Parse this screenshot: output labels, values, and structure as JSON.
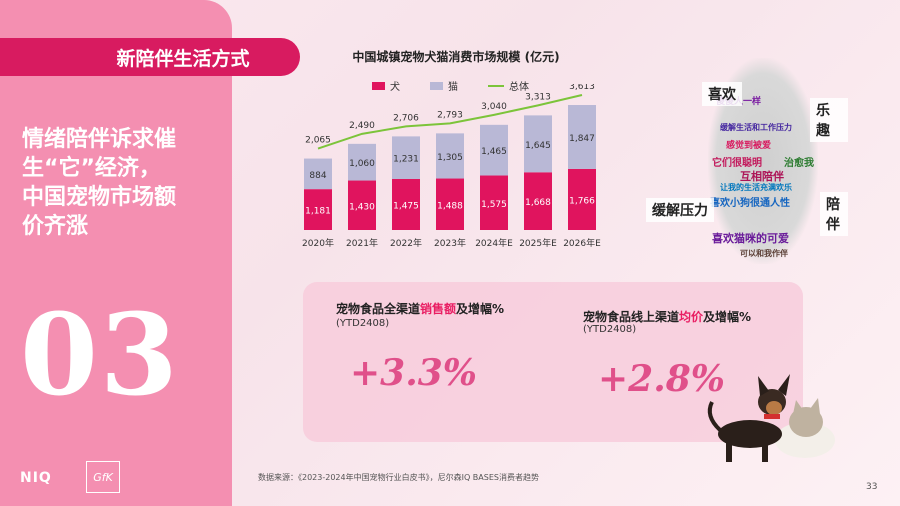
{
  "section_tag": "新陪伴生活方式",
  "headline": [
    "情绪陪伴诉求催",
    "生“它”经济，",
    "中国宠物市场额",
    "价齐涨"
  ],
  "big_number": "03",
  "logos": {
    "niq": "NIQ",
    "gfk": "GfK"
  },
  "colors": {
    "dog": "#e0145e",
    "cat": "#b9b8d6",
    "total": "#7cc43a",
    "accent": "#d81b60"
  },
  "chart_data": {
    "type": "bar",
    "title": "中国城镇宠物犬猫消费市场规模 (亿元)",
    "categories": [
      "2020年",
      "2021年",
      "2022年",
      "2023年",
      "2024年E",
      "2025年E",
      "2026年E"
    ],
    "series": [
      {
        "name": "犬",
        "type": "bar",
        "values": [
          1181,
          1430,
          1475,
          1488,
          1575,
          1668,
          1766
        ]
      },
      {
        "name": "猫",
        "type": "bar",
        "values": [
          884,
          1060,
          1231,
          1305,
          1465,
          1645,
          1847
        ]
      },
      {
        "name": "总体",
        "type": "line",
        "values": [
          2065,
          2490,
          2706,
          2793,
          3040,
          3313,
          3613
        ]
      }
    ],
    "value_labels": {
      "犬": [
        "1,181",
        "1,430",
        "1,475",
        "1,488",
        "1,575",
        "1,668",
        "1,766"
      ],
      "猫": [
        "884",
        "1,060",
        "1,231",
        "1,305",
        "1,465",
        "1,645",
        "1,847"
      ],
      "总体": [
        "2,065",
        "2,490",
        "2,706",
        "2,793",
        "3,040",
        "3,313",
        "3,613"
      ]
    },
    "stacked": true,
    "ylim": [
      0,
      3700
    ],
    "grid": false,
    "legend_position": "top"
  },
  "wordcloud": {
    "tags": [
      "喜欢",
      "乐趣",
      "缓解压力",
      "陪伴"
    ],
    "words": [
      "傻傻人一样",
      "它们很聪明",
      "互相陪伴",
      "喜欢小狗很通人性",
      "喜欢猫咪的可爱",
      "让我的生活充满欢乐",
      "感觉到被爱",
      "缓解生活和工作压力",
      "治愈我",
      "可以和我作伴"
    ]
  },
  "metrics": [
    {
      "title_pre": "宠物食品全渠道",
      "title_hl": "销售额",
      "title_post": "及增幅%",
      "sub": "(YTD2408)",
      "value": "+3.3%"
    },
    {
      "title_pre": "宠物食品线上渠道",
      "title_hl": "均价",
      "title_post": "及增幅%",
      "sub": "(YTD2408)",
      "value": "+2.8%"
    }
  ],
  "source": "数据来源：《2023-2024年中国宠物行业白皮书》，尼尔森IQ BASES消费者趋势",
  "page_number": "33"
}
